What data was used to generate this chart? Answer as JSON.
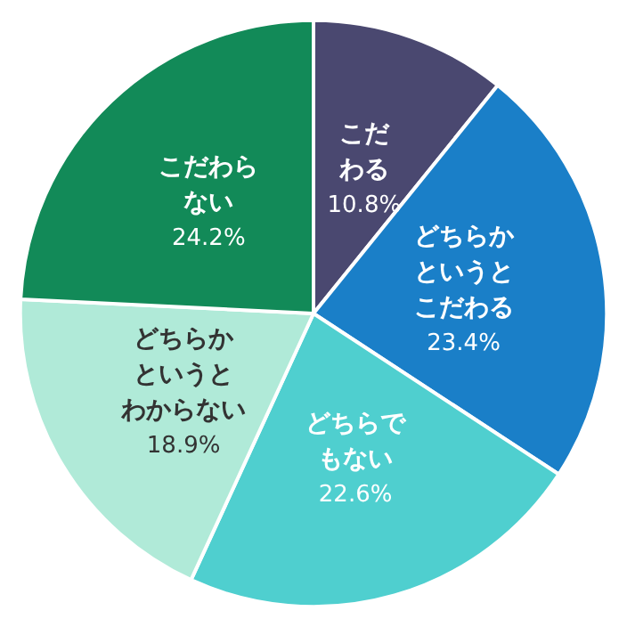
{
  "chart_data": {
    "type": "pie",
    "categories": [
      "こだわる",
      "どちらかというとこだわる",
      "どちらでもない",
      "どちらかというとわからない",
      "こだわらない"
    ],
    "values": [
      10.8,
      23.4,
      22.6,
      18.9,
      24.2
    ],
    "value_labels": [
      "10.8%",
      "23.4%",
      "22.6%",
      "18.9%",
      "24.2%"
    ],
    "colors": [
      "#4a4870",
      "#1a7fc8",
      "#4fcfcf",
      "#b0ead8",
      "#128a58"
    ],
    "legend": false
  }
}
